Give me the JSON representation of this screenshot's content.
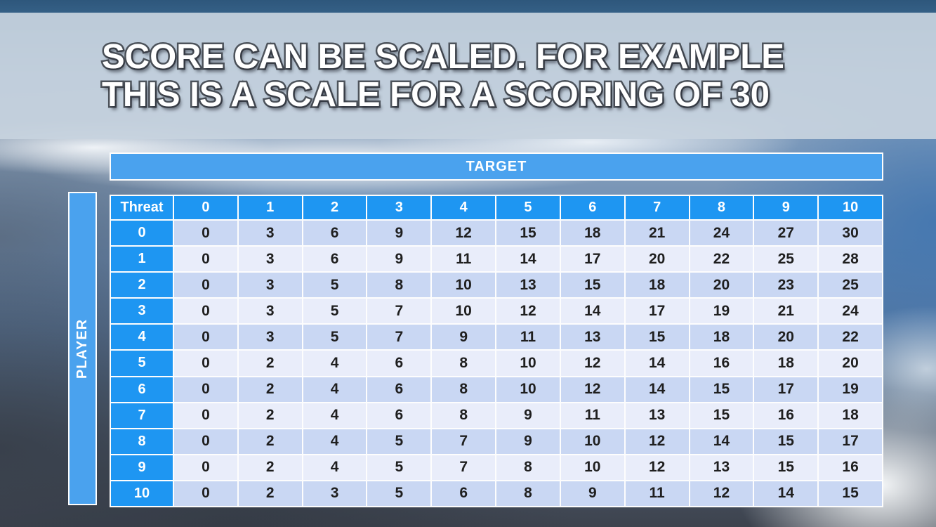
{
  "title": {
    "line1": "SCORE CAN BE SCALED. FOR EXAMPLE",
    "line2": "THIS IS A SCALE FOR A SCORING OF 30"
  },
  "matrix": {
    "target_label": "TARGET",
    "player_label": "PLAYER",
    "corner_label": "Threat",
    "column_headers": [
      "0",
      "1",
      "2",
      "3",
      "4",
      "5",
      "6",
      "7",
      "8",
      "9",
      "10"
    ],
    "row_headers": [
      "0",
      "1",
      "2",
      "3",
      "4",
      "5",
      "6",
      "7",
      "8",
      "9",
      "10"
    ],
    "rows": [
      [
        0,
        3,
        6,
        9,
        12,
        15,
        18,
        21,
        24,
        27,
        30
      ],
      [
        0,
        3,
        6,
        9,
        11,
        14,
        17,
        20,
        22,
        25,
        28
      ],
      [
        0,
        3,
        5,
        8,
        10,
        13,
        15,
        18,
        20,
        23,
        25
      ],
      [
        0,
        3,
        5,
        7,
        10,
        12,
        14,
        17,
        19,
        21,
        24
      ],
      [
        0,
        3,
        5,
        7,
        9,
        11,
        13,
        15,
        18,
        20,
        22
      ],
      [
        0,
        2,
        4,
        6,
        8,
        10,
        12,
        14,
        16,
        18,
        20
      ],
      [
        0,
        2,
        4,
        6,
        8,
        10,
        12,
        14,
        15,
        17,
        19
      ],
      [
        0,
        2,
        4,
        6,
        8,
        9,
        11,
        13,
        15,
        16,
        18
      ],
      [
        0,
        2,
        4,
        5,
        7,
        9,
        10,
        12,
        14,
        15,
        17
      ],
      [
        0,
        2,
        4,
        5,
        7,
        8,
        10,
        12,
        13,
        15,
        16
      ],
      [
        0,
        2,
        3,
        5,
        6,
        8,
        9,
        11,
        12,
        14,
        15
      ]
    ]
  },
  "colors": {
    "header_blue": "#1e96f2",
    "band_blue": "#4aa2ee",
    "row_stripe_dark": "#c9d7f3",
    "row_stripe_light": "#e9edfa",
    "cell_text": "#1f1f1f",
    "title_text": "#ffffff",
    "title_outline": "#4d535b",
    "title_band": "rgba(199,211,223,0.93)"
  }
}
